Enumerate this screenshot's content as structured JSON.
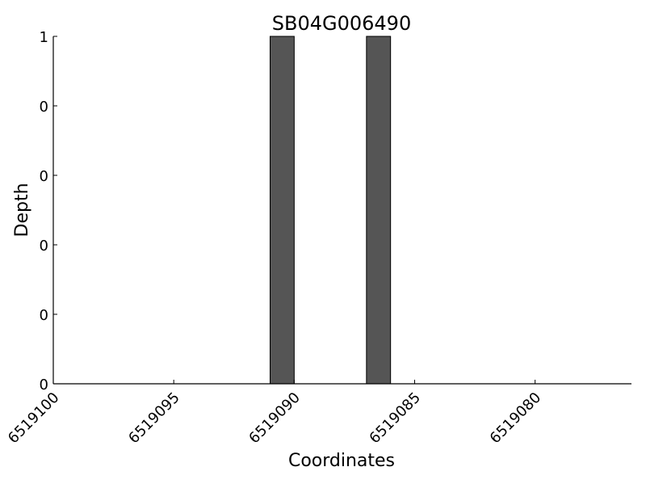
{
  "chart_data": {
    "type": "bar",
    "title": "SB04G006490",
    "xlabel": "Coordinates",
    "ylabel": "Depth",
    "xlim": [
      6519100,
      6519076
    ],
    "x_reversed": true,
    "ylim": [
      0,
      1
    ],
    "x_ticks": [
      6519100,
      6519095,
      6519090,
      6519085,
      6519080
    ],
    "x_tick_labels": [
      "6519100",
      "6519095",
      "6519090",
      "6519085",
      "6519080"
    ],
    "y_ticks": [
      0,
      0.2,
      0.4,
      0.6,
      0.8,
      1
    ],
    "y_tick_labels": [
      "0",
      "0",
      "0",
      "0",
      "0",
      "1"
    ],
    "bars": [
      {
        "x_start": 6519091,
        "x_end": 6519090,
        "value": 1
      },
      {
        "x_start": 6519087,
        "x_end": 6519086,
        "value": 1
      }
    ],
    "bar_color": "#555555",
    "edge_color": "#000000",
    "grid": false
  }
}
